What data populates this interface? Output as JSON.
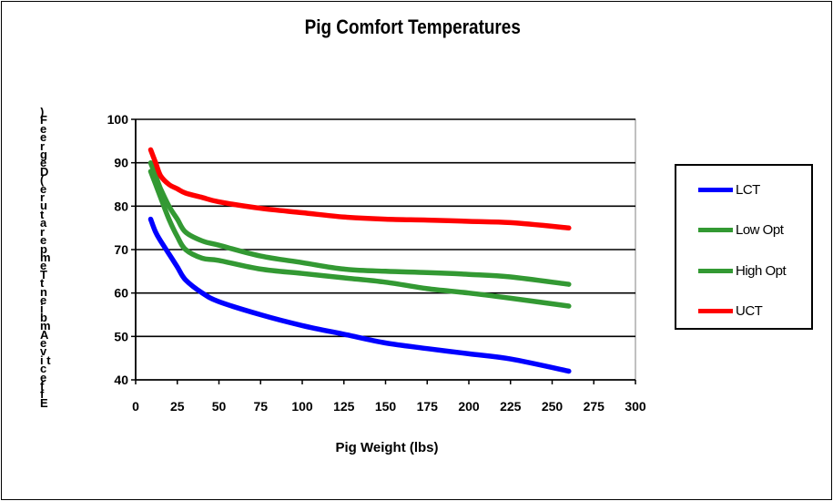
{
  "chart_data": {
    "type": "line",
    "title": "Pig Comfort Temperatures",
    "xlabel": "Pig Weight (lbs)",
    "ylabel": ") F e e r g e D ( e r u t a r e p m e T t n e i b m A e v i t c e f f E",
    "xlim": [
      0,
      300
    ],
    "ylim": [
      40,
      100
    ],
    "xticks": [
      0,
      25,
      50,
      75,
      100,
      125,
      150,
      175,
      200,
      225,
      250,
      275,
      300
    ],
    "yticks": [
      40,
      50,
      60,
      70,
      80,
      90,
      100
    ],
    "grid": "horizontal",
    "legend_position": "right",
    "series": [
      {
        "name": "LCT",
        "color": "#0000ff",
        "x": [
          9,
          12,
          15,
          20,
          25,
          30,
          40,
          50,
          75,
          100,
          125,
          150,
          175,
          200,
          225,
          260
        ],
        "y": [
          77,
          74,
          72,
          69,
          66,
          63,
          60,
          58,
          55,
          52.5,
          50.5,
          48.5,
          47.2,
          46,
          44.8,
          42
        ]
      },
      {
        "name": "Low Opt",
        "color": "#339933",
        "x": [
          9,
          12,
          15,
          20,
          25,
          30,
          40,
          50,
          75,
          100,
          125,
          150,
          175,
          200,
          225,
          260
        ],
        "y": [
          90,
          87,
          84,
          80,
          77,
          74,
          72,
          71,
          68.5,
          67,
          65.5,
          65,
          64.7,
          64.3,
          63.7,
          62
        ]
      },
      {
        "name": "High Opt",
        "color": "#339933",
        "x": [
          9,
          12,
          15,
          20,
          25,
          30,
          40,
          50,
          75,
          100,
          125,
          150,
          175,
          200,
          225,
          260
        ],
        "y": [
          88,
          85,
          82,
          77,
          73,
          70,
          68,
          67.5,
          65.5,
          64.5,
          63.5,
          62.5,
          61,
          60,
          58.8,
          57
        ]
      },
      {
        "name": "UCT",
        "color": "#ff0000",
        "x": [
          9,
          12,
          15,
          20,
          25,
          30,
          40,
          50,
          75,
          100,
          125,
          150,
          175,
          200,
          225,
          260
        ],
        "y": [
          93,
          90,
          87,
          85,
          84,
          83,
          82,
          81,
          79.5,
          78.5,
          77.5,
          77,
          76.8,
          76.5,
          76.2,
          75
        ]
      }
    ]
  }
}
